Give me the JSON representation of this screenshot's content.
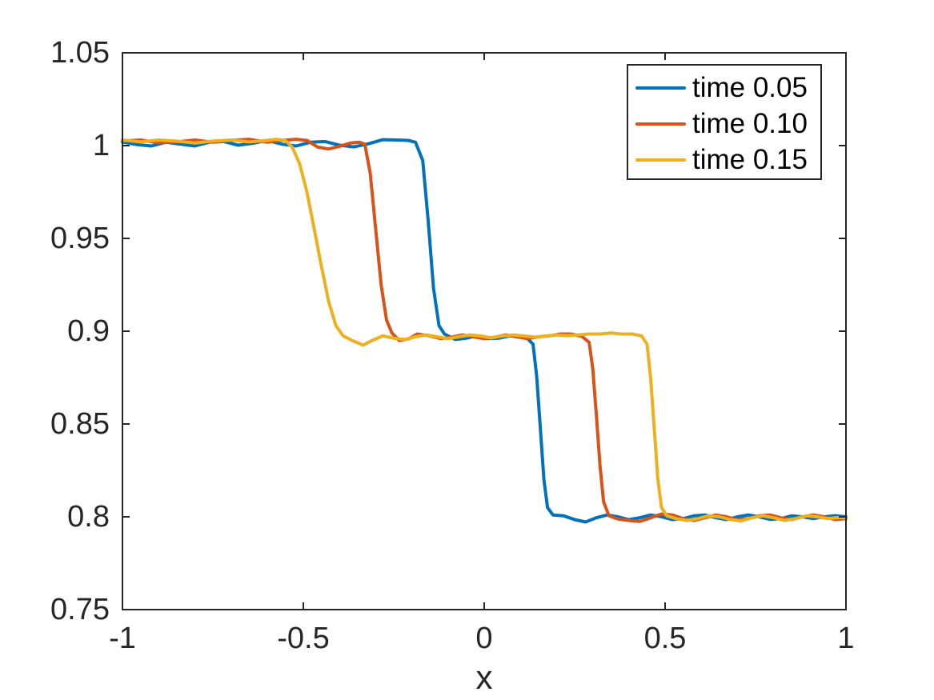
{
  "figure_background": "#ffffff",
  "axes_color": "#262626",
  "chart_data": {
    "type": "line",
    "title": "",
    "xlabel": "x",
    "ylabel": "",
    "xlim": [
      -1,
      1
    ],
    "ylim": [
      0.75,
      1.05
    ],
    "grid": false,
    "legend_position": "northeast",
    "x_ticks": [
      -1,
      -0.5,
      0,
      0.5,
      1
    ],
    "y_ticks": [
      0.75,
      0.8,
      0.85,
      0.9,
      0.95,
      1,
      1.05
    ],
    "x_tick_labels": [
      "-1",
      "-0.5",
      "0",
      "0.5",
      "1"
    ],
    "y_tick_labels_top_to_bottom": [
      "1.05",
      "1",
      "0.95",
      "0.9",
      "0.85",
      "0.8",
      "0.75"
    ],
    "series": [
      {
        "name": "time 0.05",
        "color": "#0072BD",
        "points": [
          [
            -1.0,
            1.002
          ],
          [
            -0.96,
            1.0005
          ],
          [
            -0.92,
            0.9998
          ],
          [
            -0.88,
            1.0018
          ],
          [
            -0.84,
            1.0008
          ],
          [
            -0.8,
            0.9998
          ],
          [
            -0.76,
            1.0018
          ],
          [
            -0.72,
            1.0022
          ],
          [
            -0.68,
            1.0002
          ],
          [
            -0.64,
            1.0012
          ],
          [
            -0.6,
            1.0028
          ],
          [
            -0.56,
            1.0008
          ],
          [
            -0.52,
            0.9998
          ],
          [
            -0.48,
            1.0018
          ],
          [
            -0.44,
            1.0022
          ],
          [
            -0.4,
            1.0002
          ],
          [
            -0.36,
            0.9993
          ],
          [
            -0.32,
            1.001
          ],
          [
            -0.28,
            1.0032
          ],
          [
            -0.24,
            1.003
          ],
          [
            -0.21,
            1.0028
          ],
          [
            -0.19,
            1.0018
          ],
          [
            -0.17,
            0.992
          ],
          [
            -0.155,
            0.96
          ],
          [
            -0.14,
            0.923
          ],
          [
            -0.125,
            0.903
          ],
          [
            -0.11,
            0.8985
          ],
          [
            -0.08,
            0.8955
          ],
          [
            -0.05,
            0.8962
          ],
          [
            -0.02,
            0.8975
          ],
          [
            0.01,
            0.896
          ],
          [
            0.04,
            0.8962
          ],
          [
            0.07,
            0.8975
          ],
          [
            0.1,
            0.8968
          ],
          [
            0.12,
            0.896
          ],
          [
            0.135,
            0.893
          ],
          [
            0.145,
            0.876
          ],
          [
            0.155,
            0.848
          ],
          [
            0.165,
            0.82
          ],
          [
            0.175,
            0.805
          ],
          [
            0.19,
            0.801
          ],
          [
            0.22,
            0.8005
          ],
          [
            0.25,
            0.7985
          ],
          [
            0.28,
            0.7972
          ],
          [
            0.31,
            0.7995
          ],
          [
            0.34,
            0.801
          ],
          [
            0.37,
            0.8
          ],
          [
            0.4,
            0.7985
          ],
          [
            0.43,
            0.7995
          ],
          [
            0.46,
            0.801
          ],
          [
            0.49,
            0.8
          ],
          [
            0.52,
            0.7985
          ],
          [
            0.55,
            0.799
          ],
          [
            0.58,
            0.8005
          ],
          [
            0.61,
            0.801
          ],
          [
            0.64,
            0.7995
          ],
          [
            0.67,
            0.7985
          ],
          [
            0.7,
            0.8
          ],
          [
            0.73,
            0.801
          ],
          [
            0.76,
            0.8
          ],
          [
            0.79,
            0.7986
          ],
          [
            0.82,
            0.799
          ],
          [
            0.85,
            0.8005
          ],
          [
            0.88,
            0.8
          ],
          [
            0.91,
            0.799
          ],
          [
            0.94,
            0.8
          ],
          [
            0.97,
            0.8006
          ],
          [
            1.0,
            0.8
          ]
        ]
      },
      {
        "name": "time 0.10",
        "color": "#D95319",
        "points": [
          [
            -1.0,
            1.0025
          ],
          [
            -0.95,
            1.003
          ],
          [
            -0.9,
            1.0015
          ],
          [
            -0.85,
            1.002
          ],
          [
            -0.8,
            1.003
          ],
          [
            -0.75,
            1.0018
          ],
          [
            -0.7,
            1.0028
          ],
          [
            -0.65,
            1.0034
          ],
          [
            -0.6,
            1.0018
          ],
          [
            -0.56,
            1.0028
          ],
          [
            -0.52,
            1.0034
          ],
          [
            -0.49,
            1.0028
          ],
          [
            -0.46,
            0.9992
          ],
          [
            -0.43,
            0.9982
          ],
          [
            -0.4,
            0.9996
          ],
          [
            -0.37,
            1.0014
          ],
          [
            -0.345,
            1.0018
          ],
          [
            -0.33,
            1.0008
          ],
          [
            -0.315,
            0.985
          ],
          [
            -0.3,
            0.955
          ],
          [
            -0.285,
            0.925
          ],
          [
            -0.27,
            0.906
          ],
          [
            -0.255,
            0.899
          ],
          [
            -0.235,
            0.895
          ],
          [
            -0.21,
            0.8958
          ],
          [
            -0.185,
            0.8985
          ],
          [
            -0.15,
            0.8975
          ],
          [
            -0.12,
            0.896
          ],
          [
            -0.09,
            0.8968
          ],
          [
            -0.06,
            0.898
          ],
          [
            -0.03,
            0.897
          ],
          [
            0.0,
            0.896
          ],
          [
            0.03,
            0.8968
          ],
          [
            0.06,
            0.898
          ],
          [
            0.09,
            0.897
          ],
          [
            0.12,
            0.896
          ],
          [
            0.15,
            0.897
          ],
          [
            0.18,
            0.8975
          ],
          [
            0.21,
            0.8985
          ],
          [
            0.24,
            0.8985
          ],
          [
            0.27,
            0.8972
          ],
          [
            0.29,
            0.894
          ],
          [
            0.3,
            0.88
          ],
          [
            0.31,
            0.855
          ],
          [
            0.32,
            0.828
          ],
          [
            0.33,
            0.808
          ],
          [
            0.345,
            0.8005
          ],
          [
            0.37,
            0.7988
          ],
          [
            0.4,
            0.798
          ],
          [
            0.43,
            0.7975
          ],
          [
            0.46,
            0.7995
          ],
          [
            0.49,
            0.8015
          ],
          [
            0.52,
            0.801
          ],
          [
            0.55,
            0.799
          ],
          [
            0.58,
            0.798
          ],
          [
            0.61,
            0.7995
          ],
          [
            0.64,
            0.801
          ],
          [
            0.67,
            0.8
          ],
          [
            0.7,
            0.7985
          ],
          [
            0.73,
            0.799
          ],
          [
            0.76,
            0.8005
          ],
          [
            0.79,
            0.801
          ],
          [
            0.82,
            0.7995
          ],
          [
            0.85,
            0.7985
          ],
          [
            0.88,
            0.8
          ],
          [
            0.91,
            0.801
          ],
          [
            0.94,
            0.8
          ],
          [
            0.97,
            0.7985
          ],
          [
            1.0,
            0.799
          ]
        ]
      },
      {
        "name": "time 0.15",
        "color": "#EDB120",
        "points": [
          [
            -1.0,
            1.003
          ],
          [
            -0.95,
            1.002
          ],
          [
            -0.9,
            1.003
          ],
          [
            -0.85,
            1.0024
          ],
          [
            -0.8,
            1.0014
          ],
          [
            -0.75,
            1.0024
          ],
          [
            -0.7,
            1.003
          ],
          [
            -0.65,
            1.002
          ],
          [
            -0.61,
            1.0026
          ],
          [
            -0.575,
            1.0034
          ],
          [
            -0.55,
            1.0028
          ],
          [
            -0.53,
            0.999
          ],
          [
            -0.51,
            0.99
          ],
          [
            -0.49,
            0.975
          ],
          [
            -0.47,
            0.955
          ],
          [
            -0.45,
            0.935
          ],
          [
            -0.43,
            0.916
          ],
          [
            -0.41,
            0.903
          ],
          [
            -0.39,
            0.8975
          ],
          [
            -0.365,
            0.895
          ],
          [
            -0.335,
            0.8925
          ],
          [
            -0.31,
            0.895
          ],
          [
            -0.28,
            0.8975
          ],
          [
            -0.25,
            0.8962
          ],
          [
            -0.22,
            0.8955
          ],
          [
            -0.19,
            0.897
          ],
          [
            -0.16,
            0.898
          ],
          [
            -0.13,
            0.897
          ],
          [
            -0.1,
            0.896
          ],
          [
            -0.07,
            0.897
          ],
          [
            -0.04,
            0.898
          ],
          [
            -0.01,
            0.8974
          ],
          [
            0.02,
            0.8964
          ],
          [
            0.05,
            0.8974
          ],
          [
            0.08,
            0.898
          ],
          [
            0.11,
            0.8974
          ],
          [
            0.14,
            0.8968
          ],
          [
            0.17,
            0.8974
          ],
          [
            0.2,
            0.898
          ],
          [
            0.23,
            0.8976
          ],
          [
            0.26,
            0.898
          ],
          [
            0.29,
            0.8985
          ],
          [
            0.32,
            0.8985
          ],
          [
            0.35,
            0.899
          ],
          [
            0.38,
            0.8985
          ],
          [
            0.41,
            0.8985
          ],
          [
            0.435,
            0.8975
          ],
          [
            0.45,
            0.893
          ],
          [
            0.46,
            0.875
          ],
          [
            0.47,
            0.848
          ],
          [
            0.48,
            0.82
          ],
          [
            0.49,
            0.805
          ],
          [
            0.505,
            0.8005
          ],
          [
            0.53,
            0.799
          ],
          [
            0.56,
            0.798
          ],
          [
            0.59,
            0.799
          ],
          [
            0.62,
            0.8005
          ],
          [
            0.65,
            0.8
          ],
          [
            0.68,
            0.7985
          ],
          [
            0.71,
            0.7978
          ],
          [
            0.74,
            0.7995
          ],
          [
            0.77,
            0.8005
          ],
          [
            0.8,
            0.7995
          ],
          [
            0.83,
            0.798
          ],
          [
            0.86,
            0.799
          ],
          [
            0.89,
            0.8005
          ],
          [
            0.92,
            0.8
          ],
          [
            0.95,
            0.799
          ],
          [
            0.98,
            0.7996
          ],
          [
            1.0,
            0.7995
          ]
        ]
      }
    ]
  },
  "legend": {
    "entries": [
      {
        "label": "time 0.05",
        "color": "#0072BD"
      },
      {
        "label": "time 0.10",
        "color": "#D95319"
      },
      {
        "label": "time 0.15",
        "color": "#EDB120"
      }
    ]
  }
}
